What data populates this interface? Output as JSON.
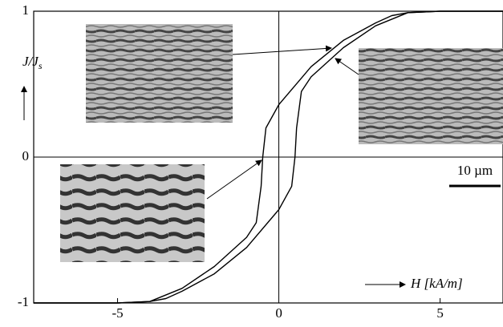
{
  "chart_data": {
    "type": "line",
    "ylabel": {
      "main": "J/J",
      "sub": "s"
    },
    "xlabel": "H [kA/m]",
    "annotation": "10 µm",
    "xlim": [
      -7.6,
      6.95
    ],
    "ylim": [
      -1,
      1
    ],
    "xticks": [
      -5,
      0,
      5
    ],
    "yticks": [
      -1,
      0,
      1
    ],
    "series": [
      {
        "color": "#000000",
        "x": [
          6.95,
          5,
          4,
          3.5,
          3,
          2,
          1,
          0,
          -0.4,
          -0.5,
          -0.55,
          -0.7,
          -1,
          -2,
          -3,
          -4,
          -5,
          -7.6
        ],
        "values": [
          1,
          1,
          0.99,
          0.97,
          0.92,
          0.8,
          0.62,
          0.36,
          0.2,
          0,
          -0.2,
          -0.45,
          -0.55,
          -0.75,
          -0.9,
          -0.99,
          -1,
          -1
        ]
      },
      {
        "color": "#000000",
        "x": [
          -7.6,
          -5,
          -4,
          -3.5,
          -3,
          -2,
          -1,
          0,
          0.4,
          0.5,
          0.55,
          0.7,
          1,
          2,
          3,
          4,
          5,
          6.95
        ],
        "values": [
          -1,
          -1,
          -0.99,
          -0.97,
          -0.92,
          -0.8,
          -0.62,
          -0.36,
          -0.2,
          0,
          0.2,
          0.45,
          0.55,
          0.75,
          0.9,
          0.99,
          1,
          1
        ]
      }
    ]
  }
}
